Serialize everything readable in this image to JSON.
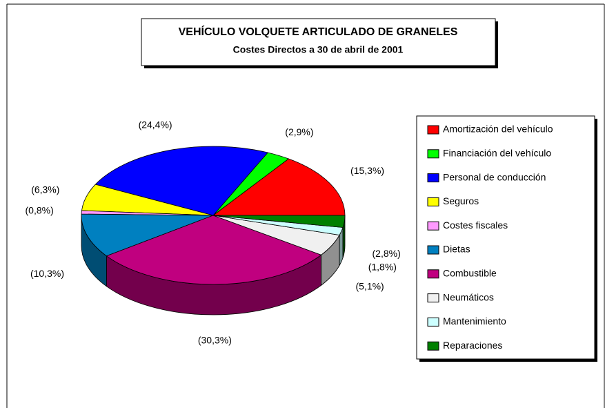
{
  "chart_data": {
    "type": "pie",
    "title": "VEHÍCULO VOLQUETE ARTICULADO DE GRANELES",
    "subtitle": "Costes Directos a 30 de abril de 2001",
    "categories": [
      "Amortización del vehículo",
      "Financiación del vehículo",
      "Personal de conducción",
      "Seguros",
      "Costes fiscales",
      "Dietas",
      "Combustible",
      "Neumáticos",
      "Mantenimiento",
      "Reparaciones"
    ],
    "values": [
      15.3,
      2.9,
      24.4,
      6.3,
      0.8,
      10.3,
      30.3,
      5.1,
      1.8,
      2.8
    ],
    "value_labels": [
      "(15,3%)",
      "(2,9%)",
      "(24,4%)",
      "(6,3%)",
      "(0,8%)",
      "(10,3%)",
      "(30,3%)",
      "(5,1%)",
      "(1,8%)",
      "(2,8%)"
    ],
    "colors": [
      "#ff0000",
      "#00ff00",
      "#0000ff",
      "#ffff00",
      "#ff99ff",
      "#0080c0",
      "#c0007f",
      "#f0f0f0",
      "#ccffff",
      "#008000"
    ],
    "legend": "right"
  }
}
